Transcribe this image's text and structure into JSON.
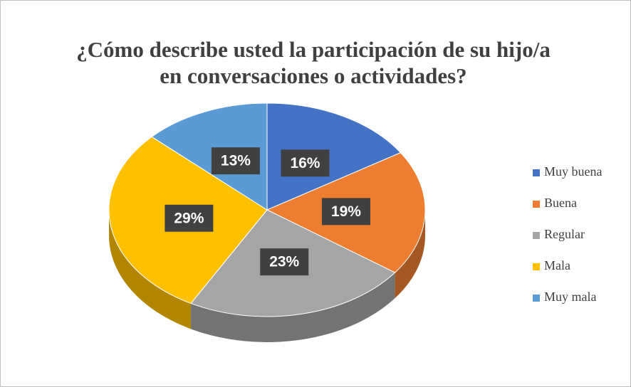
{
  "chart_data": {
    "type": "pie",
    "title": [
      "¿Cómo describe usted la participación de su hijo/a",
      "en conversaciones o actividades?"
    ],
    "categories": [
      "Muy buena",
      "Buena",
      "Regular",
      "Mala",
      "Muy mala"
    ],
    "values": [
      16,
      19,
      23,
      29,
      13
    ],
    "value_labels": [
      "16%",
      "19%",
      "23%",
      "29%",
      "13%"
    ],
    "colors": [
      "#4472c4",
      "#ed7d31",
      "#a5a5a5",
      "#ffc000",
      "#5b9bd5"
    ],
    "legend": "right"
  }
}
